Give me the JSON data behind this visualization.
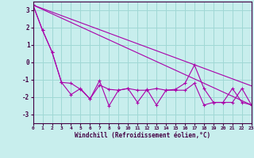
{
  "xlabel": "Windchill (Refroidissement éolien,°C)",
  "background_color": "#c8eeed",
  "grid_color": "#a0d8d5",
  "line_color": "#aa00aa",
  "xlim": [
    0,
    23
  ],
  "ylim": [
    -3.5,
    3.5
  ],
  "yticks": [
    -3,
    -2,
    -1,
    0,
    1,
    2,
    3
  ],
  "xticks": [
    0,
    1,
    2,
    3,
    4,
    5,
    6,
    7,
    8,
    9,
    10,
    11,
    12,
    13,
    14,
    15,
    16,
    17,
    18,
    19,
    20,
    21,
    22,
    23
  ],
  "series1_x": [
    0,
    1,
    2,
    3,
    4,
    5,
    6,
    7,
    8,
    9,
    10,
    11,
    12,
    13,
    14,
    15,
    16,
    17,
    18,
    19,
    20,
    21,
    22,
    23
  ],
  "series1_y": [
    3.3,
    1.85,
    0.6,
    -1.15,
    -1.85,
    -1.5,
    -2.1,
    -1.05,
    -2.5,
    -1.6,
    -1.5,
    -2.3,
    -1.55,
    -2.45,
    -1.6,
    -1.55,
    -1.2,
    -0.15,
    -1.5,
    -2.3,
    -2.3,
    -2.3,
    -1.5,
    -2.45
  ],
  "series2_x": [
    0,
    1,
    2,
    3,
    4,
    5,
    6,
    7,
    8,
    9,
    10,
    11,
    12,
    13,
    14,
    15,
    16,
    17,
    18,
    19,
    20,
    21,
    22,
    23
  ],
  "series2_y": [
    3.3,
    1.85,
    0.6,
    -1.15,
    -1.2,
    -1.55,
    -2.1,
    -1.3,
    -1.55,
    -1.6,
    -1.5,
    -1.6,
    -1.6,
    -1.5,
    -1.6,
    -1.6,
    -1.6,
    -1.2,
    -2.45,
    -2.3,
    -2.3,
    -1.5,
    -2.3,
    -2.45
  ],
  "trend1_x": [
    0,
    23
  ],
  "trend1_y": [
    3.3,
    -1.35
  ],
  "trend2_x": [
    0,
    23
  ],
  "trend2_y": [
    3.3,
    -2.45
  ]
}
